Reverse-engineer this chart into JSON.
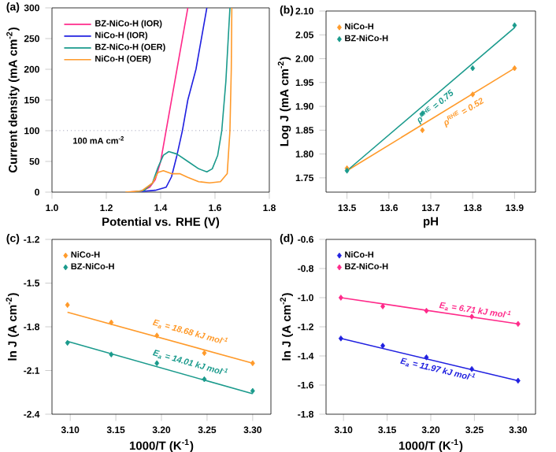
{
  "chart_data": [
    {
      "type": "line",
      "title": "(a)",
      "xlabel": "Potential vs. RHE (V)",
      "ylabel": "Current density (mA cm$^{-2}$)",
      "xlim": [
        1.0,
        1.8
      ],
      "ylim": [
        0,
        300
      ],
      "xticks": [
        {
          "value": 1,
          "label": "1.0"
        },
        1.2,
        1.4,
        1.6,
        1.8
      ],
      "yticks": [
        0,
        50,
        100,
        150,
        200,
        250,
        300
      ],
      "legend": "top left",
      "line_style": "solid",
      "ref_lines": [
        {
          "axis": "y",
          "value": 100,
          "label": "100 mA cm$^{-2}$",
          "line_style": "dotted",
          "color": "#333366"
        }
      ],
      "series": [
        {
          "name": "BZ-NiCo-H (IOR)",
          "color": "#ff2a8a",
          "x": [
            1.28,
            1.33,
            1.36,
            1.38,
            1.4,
            1.42,
            1.44,
            1.46,
            1.48,
            1.5
          ],
          "values": [
            0,
            2,
            8,
            20,
            50,
            100,
            150,
            200,
            250,
            300
          ]
        },
        {
          "name": "NiCo-H (IOR)",
          "color": "#2020e0",
          "x": [
            1.3,
            1.38,
            1.42,
            1.44,
            1.46,
            1.48,
            1.5,
            1.53,
            1.55,
            1.57
          ],
          "values": [
            0,
            3,
            8,
            25,
            60,
            100,
            150,
            200,
            250,
            300
          ]
        },
        {
          "name": "BZ-NiCo-H (OER)",
          "color": "#1a9a8c",
          "x": [
            1.3,
            1.34,
            1.37,
            1.39,
            1.41,
            1.43,
            1.46,
            1.5,
            1.54,
            1.57,
            1.59,
            1.61,
            1.625,
            1.64,
            1.655
          ],
          "values": [
            0,
            3,
            15,
            40,
            60,
            66,
            62,
            50,
            38,
            33,
            38,
            60,
            100,
            180,
            300
          ]
        },
        {
          "name": "NiCo-H (OER)",
          "color": "#ff9a2a",
          "x": [
            1.27,
            1.33,
            1.37,
            1.39,
            1.41,
            1.44,
            1.47,
            1.5,
            1.54,
            1.58,
            1.62,
            1.645,
            1.655,
            1.66,
            1.662
          ],
          "values": [
            0,
            2,
            15,
            32,
            35,
            30,
            30,
            24,
            17,
            15,
            17,
            30,
            100,
            200,
            300
          ]
        }
      ]
    },
    {
      "type": "scatter",
      "title": "(b)",
      "xlabel": "pH",
      "ylabel": "Log J (mA cm$^{-2}$)",
      "xlim": [
        13.45,
        13.95
      ],
      "ylim": [
        1.72,
        2.1
      ],
      "xticks": [
        13.5,
        13.6,
        13.7,
        13.8,
        13.9
      ],
      "yticks": [
        1.75,
        {
          "value": 1.8,
          "label": "1.80"
        },
        1.85,
        {
          "value": 1.9,
          "label": "1.90"
        },
        1.95,
        {
          "value": 2,
          "label": "2.00"
        },
        2.05,
        {
          "value": 2.1,
          "label": "2.10"
        }
      ],
      "legend": "top left",
      "marker": "diamond",
      "x": [
        13.5,
        13.68,
        13.8,
        13.9
      ],
      "annotations": [
        {
          "text": "ρ$^{RHE}$ = 0.75",
          "x": 13.7,
          "y": 1.91
        },
        {
          "text": "ρ$^{RHE}$ = 0.52",
          "x": 13.77,
          "y": 1.9
        }
      ],
      "series": [
        {
          "name": "NiCo-H",
          "color": "#ff9a2a",
          "values": [
            1.77,
            1.85,
            1.925,
            1.98
          ]
        },
        {
          "name": "BZ-NiCo-H",
          "color": "#1a9a8c",
          "values": [
            1.765,
            1.885,
            1.98,
            2.07
          ]
        },
        {
          "type": "line",
          "marker": "none",
          "color": "#ff9a2a",
          "x": [
            13.5,
            13.9
          ],
          "values": [
            1.765,
            1.98
          ]
        },
        {
          "type": "line",
          "marker": "none",
          "color": "#1a9a8c",
          "x": [
            13.5,
            13.9
          ],
          "values": [
            1.765,
            2.065
          ]
        }
      ]
    },
    {
      "type": "scatter",
      "title": "(c)",
      "xlabel": "1000/T (K$^{-1}$)",
      "ylabel": "ln J (A cm$^{-2}$)",
      "xlim": [
        3.08,
        3.32
      ],
      "ylim": [
        -2.4,
        -1.2
      ],
      "xticks": [
        {
          "value": 3.1,
          "label": "3.10"
        },
        3.15,
        {
          "value": 3.2,
          "label": "3.20"
        },
        3.25,
        {
          "value": 3.3,
          "label": "3.30"
        }
      ],
      "yticks": [
        -2.4,
        -2.1,
        -1.8,
        -1.5,
        -1.2
      ],
      "legend": "top left",
      "marker": "diamond",
      "x": [
        3.097,
        3.145,
        3.195,
        3.247,
        3.3
      ],
      "annotations": [
        {
          "text": "E$_{a}$ = 18.68 kJ mol$^{-1}$",
          "x": 3.23,
          "y": -1.88
        },
        {
          "text": "E$_{a}$ = 14.01 kJ mol$^{-1}$",
          "x": 3.23,
          "y": -2.09
        }
      ],
      "series": [
        {
          "name": "NiCo-H",
          "color": "#ff9a2a",
          "values": [
            -1.65,
            -1.77,
            -1.86,
            -1.98,
            -2.05
          ]
        },
        {
          "name": "BZ-NiCo-H",
          "color": "#1a9a8c",
          "values": [
            -1.91,
            -1.99,
            -2.05,
            -2.16,
            -2.24
          ]
        },
        {
          "type": "line",
          "marker": "none",
          "color": "#ff9a2a",
          "x": [
            3.097,
            3.3
          ],
          "values": [
            -1.7,
            -2.05
          ]
        },
        {
          "type": "line",
          "marker": "none",
          "color": "#1a9a8c",
          "x": [
            3.097,
            3.3
          ],
          "values": [
            -1.9,
            -2.26
          ]
        }
      ]
    },
    {
      "type": "scatter",
      "title": "(d)",
      "xlabel": "1000/T (K$^{-1}$)",
      "ylabel": "ln J (A cm$^{-2}$)",
      "xlim": [
        3.08,
        3.32
      ],
      "ylim": [
        -1.8,
        -0.6
      ],
      "xticks": [
        {
          "value": 3.1,
          "label": "3.10"
        },
        3.15,
        {
          "value": 3.2,
          "label": "3.20"
        },
        3.25,
        {
          "value": 3.3,
          "label": "3.30"
        }
      ],
      "yticks": [
        -1.8,
        -1.6,
        -1.4,
        -1.2,
        {
          "value": -1,
          "label": "-1.0"
        },
        -0.8,
        -0.6
      ],
      "legend": "top left",
      "marker": "diamond",
      "x": [
        3.097,
        3.145,
        3.195,
        3.247,
        3.3
      ],
      "annotations": [
        {
          "text": "E$_{a}$ = 6.71 kJ mol$^{-1}$",
          "x": 3.25,
          "y": -1.13
        },
        {
          "text": "E$_{a}$ = 11.97 kJ mol$^{-1}$",
          "x": 3.21,
          "y": -1.45
        }
      ],
      "series": [
        {
          "name": "NiCo-H",
          "color": "#2020e0",
          "values": [
            -1.28,
            -1.33,
            -1.41,
            -1.49,
            -1.57
          ]
        },
        {
          "name": "BZ-NiCo-H",
          "color": "#ff2a8a",
          "values": [
            -1.0,
            -1.06,
            -1.09,
            -1.13,
            -1.18
          ]
        },
        {
          "type": "line",
          "marker": "none",
          "color": "#2020e0",
          "x": [
            3.097,
            3.3
          ],
          "values": [
            -1.28,
            -1.57
          ]
        },
        {
          "type": "line",
          "marker": "none",
          "color": "#ff2a8a",
          "x": [
            3.097,
            3.3
          ],
          "values": [
            -1.0,
            -1.18
          ]
        }
      ]
    }
  ]
}
